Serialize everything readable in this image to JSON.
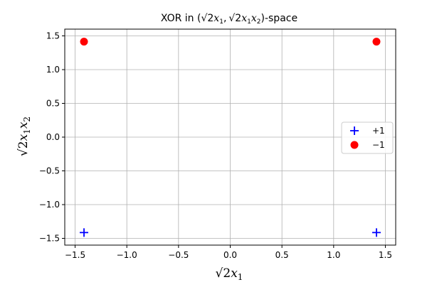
{
  "chart_data": {
    "type": "scatter",
    "title": "XOR in (√2x₁, √2x₁x₂)-space",
    "title_parts": {
      "pre": "XOR in (",
      "r1": "√2",
      "v1": "x",
      "s1": "1",
      "comma": ",",
      "r2": "√2",
      "v2": "x",
      "s2": "1",
      "v3": "x",
      "s3": "2",
      "post": ")-space"
    },
    "xlabel": "√2x₁",
    "xlabel_parts": {
      "root": "√2",
      "var": "x",
      "sub": "1"
    },
    "ylabel": "√2x₁x₂",
    "ylabel_parts": {
      "root": "√2",
      "var1": "x",
      "sub1": "1",
      "var2": "x",
      "sub2": "2"
    },
    "xlim": [
      -1.6,
      1.6
    ],
    "ylim": [
      -1.6,
      1.6
    ],
    "xticks": [
      -1.5,
      -1.0,
      -0.5,
      0.0,
      0.5,
      1.0,
      1.5
    ],
    "xtick_labels": [
      "−1.5",
      "−1.0",
      "−0.5",
      "0.0",
      "0.5",
      "1.0",
      "1.5"
    ],
    "yticks": [
      -1.5,
      -1.0,
      -0.5,
      0.0,
      0.5,
      1.0,
      1.5
    ],
    "ytick_labels": [
      "−1.5",
      "−1.0",
      "−0.5",
      "0.0",
      "0.5",
      "1.0",
      "1.5"
    ],
    "grid": true,
    "legend_position": "center-right",
    "series": [
      {
        "name": "+1",
        "marker": "plus",
        "color": "#0000ff",
        "points": [
          {
            "x": -1.414,
            "y": -1.414
          },
          {
            "x": 1.414,
            "y": -1.414
          }
        ]
      },
      {
        "name": "−1",
        "marker": "circle",
        "color": "#ff0000",
        "points": [
          {
            "x": -1.414,
            "y": 1.414
          },
          {
            "x": 1.414,
            "y": 1.414
          }
        ]
      }
    ]
  }
}
